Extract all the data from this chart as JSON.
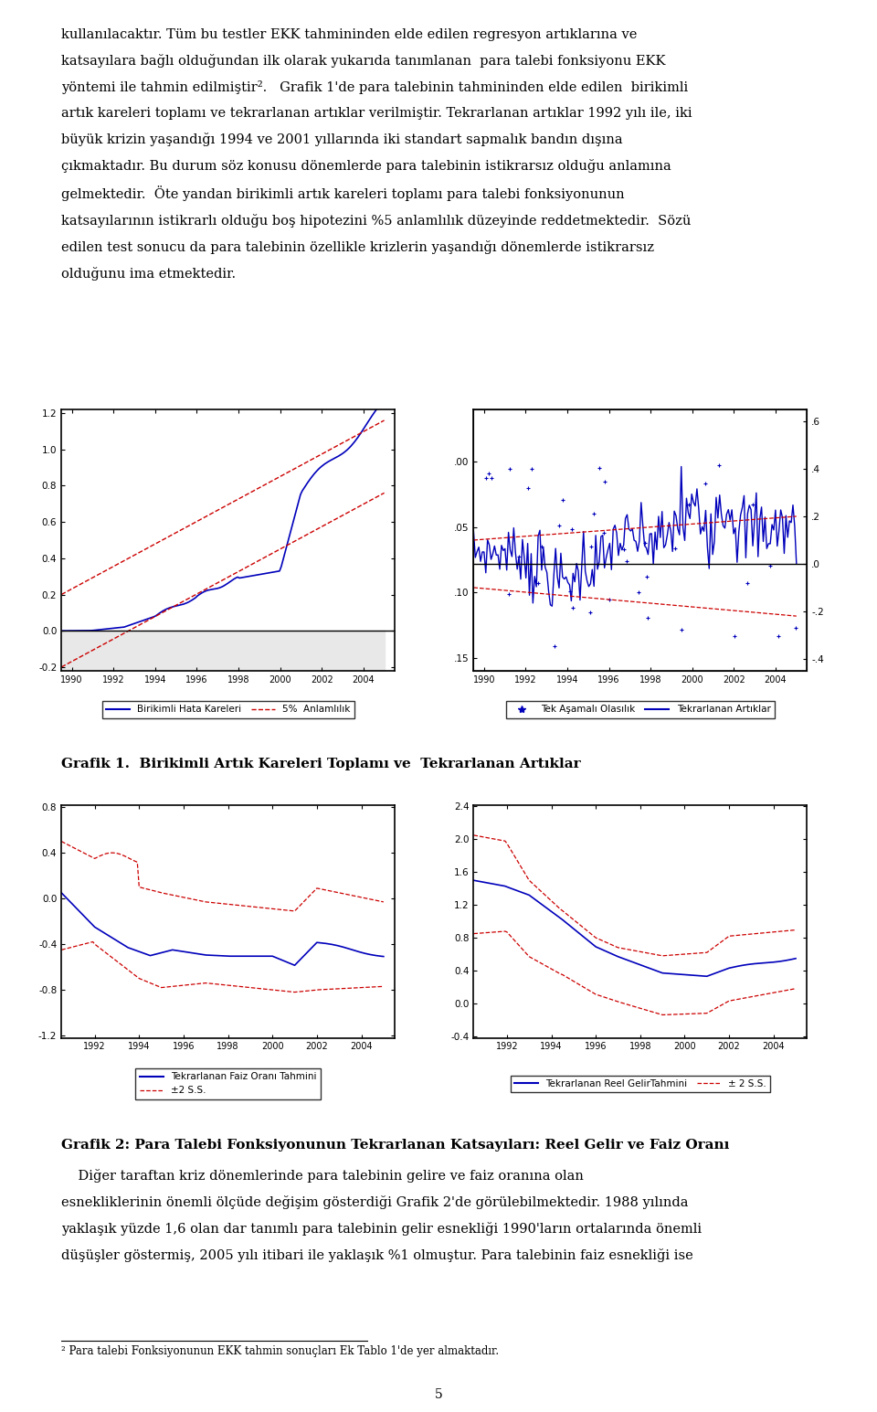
{
  "fig_width": 9.6,
  "fig_height": 15.45,
  "graf1_title": "Grafik 1.  Birikimli Artık Kareleri Toplamı ve  Tekrarlanan Artıklar",
  "graf2_title": "Grafik 2: Para Talebi Fonksiyonunun Tekrarlanan Katsayıları: Reel Gelir ve Faiz Oranı",
  "footnote": "² Para talebi Fonksiyonunun EKK tahmin sonuçları Ek Tablo 1'de yer almaktadır.",
  "page_number": "5"
}
